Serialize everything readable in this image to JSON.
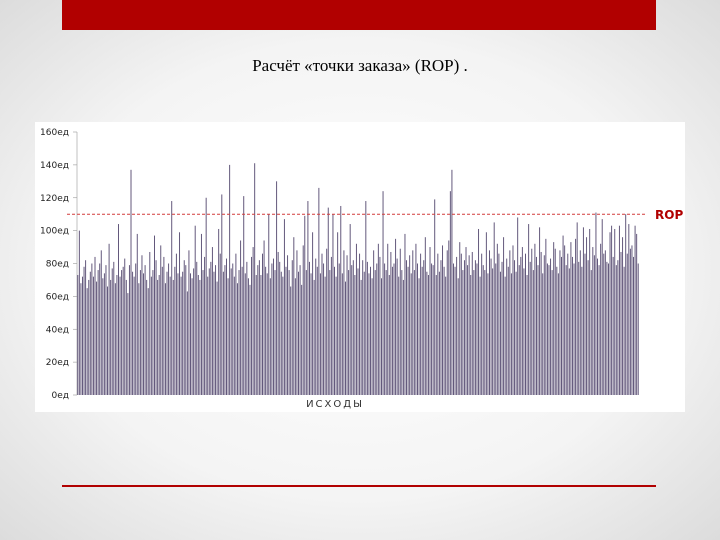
{
  "slide": {
    "title": "Расчёт «точки заказа» (ROP) ."
  },
  "colors": {
    "accent": "#b10000",
    "bar": "#5f5478",
    "rop_line": "#d23c3c"
  },
  "chart_data": {
    "type": "bar",
    "xlabel": "ИСХОДЫ",
    "ylabel": "",
    "ylim": [
      0,
      160
    ],
    "yticks": [
      0,
      20,
      40,
      60,
      80,
      100,
      120,
      140,
      160
    ],
    "ytick_labels": [
      "0ед",
      "20ед",
      "40ед",
      "60ед",
      "80ед",
      "100ед",
      "120ед",
      "140ед",
      "160ед"
    ],
    "grid": false,
    "legend": "none",
    "rop": {
      "label": "ROP",
      "value": 110
    },
    "values": [
      73,
      100,
      68,
      72,
      78,
      82,
      65,
      70,
      75,
      80,
      72,
      84,
      69,
      76,
      80,
      88,
      71,
      74,
      79,
      66,
      92,
      70,
      77,
      81,
      68,
      73,
      104,
      72,
      76,
      78,
      83,
      70,
      62,
      79,
      137,
      75,
      72,
      80,
      98,
      68,
      76,
      85,
      74,
      79,
      70,
      65,
      87,
      72,
      76,
      97,
      82,
      70,
      73,
      91,
      78,
      84,
      68,
      75,
      80,
      72,
      118,
      70,
      78,
      86,
      74,
      99,
      72,
      75,
      82,
      79,
      63,
      88,
      74,
      71,
      77,
      103,
      81,
      73,
      70,
      98,
      76,
      84,
      120,
      72,
      77,
      81,
      90,
      75,
      79,
      69,
      101,
      86,
      122,
      75,
      79,
      83,
      71,
      140,
      77,
      80,
      72,
      86,
      68,
      76,
      94,
      78,
      121,
      74,
      81,
      71,
      67,
      84,
      90,
      141,
      73,
      79,
      82,
      73,
      86,
      94,
      78,
      74,
      110,
      71,
      80,
      83,
      76,
      130,
      87,
      81,
      75,
      72,
      107,
      78,
      85,
      76,
      66,
      82,
      96,
      71,
      88,
      75,
      79,
      67,
      91,
      109,
      76,
      118,
      81,
      74,
      99,
      70,
      83,
      78,
      126,
      74,
      86,
      80,
      72,
      89,
      114,
      76,
      84,
      110,
      78,
      72,
      99,
      80,
      115,
      74,
      88,
      69,
      85,
      76,
      104,
      79,
      82,
      73,
      92,
      77,
      86,
      70,
      82,
      75,
      118,
      81,
      74,
      78,
      71,
      88,
      76,
      80,
      92,
      84,
      71,
      124,
      80,
      76,
      92,
      73,
      87,
      78,
      80,
      95,
      83,
      72,
      89,
      76,
      70,
      98,
      82,
      78,
      85,
      74,
      88,
      76,
      92,
      80,
      71,
      86,
      78,
      82,
      96,
      75,
      73,
      90,
      80,
      79,
      119,
      73,
      86,
      75,
      82,
      91,
      78,
      72,
      88,
      94,
      124,
      137,
      80,
      78,
      84,
      71,
      93,
      86,
      76,
      82,
      90,
      79,
      85,
      73,
      87,
      76,
      82,
      80,
      101,
      72,
      86,
      79,
      76,
      99,
      74,
      88,
      83,
      77,
      105,
      80,
      92,
      86,
      75,
      81,
      96,
      72,
      83,
      78,
      88,
      74,
      91,
      82,
      75,
      108,
      79,
      84,
      90,
      77,
      86,
      73,
      104,
      81,
      89,
      76,
      92,
      84,
      79,
      102,
      87,
      74,
      85,
      95,
      80,
      79,
      83,
      76,
      93,
      89,
      78,
      74,
      88,
      84,
      97,
      91,
      79,
      86,
      77,
      93,
      84,
      80,
      95,
      105,
      81,
      88,
      78,
      102,
      86,
      96,
      82,
      101,
      76,
      90,
      85,
      111,
      83,
      79,
      92,
      107,
      86,
      88,
      81,
      80,
      99,
      103,
      84,
      101,
      79,
      82,
      103,
      87,
      96,
      78,
      110,
      86,
      104,
      89,
      91,
      84,
      103,
      98,
      80
    ]
  }
}
